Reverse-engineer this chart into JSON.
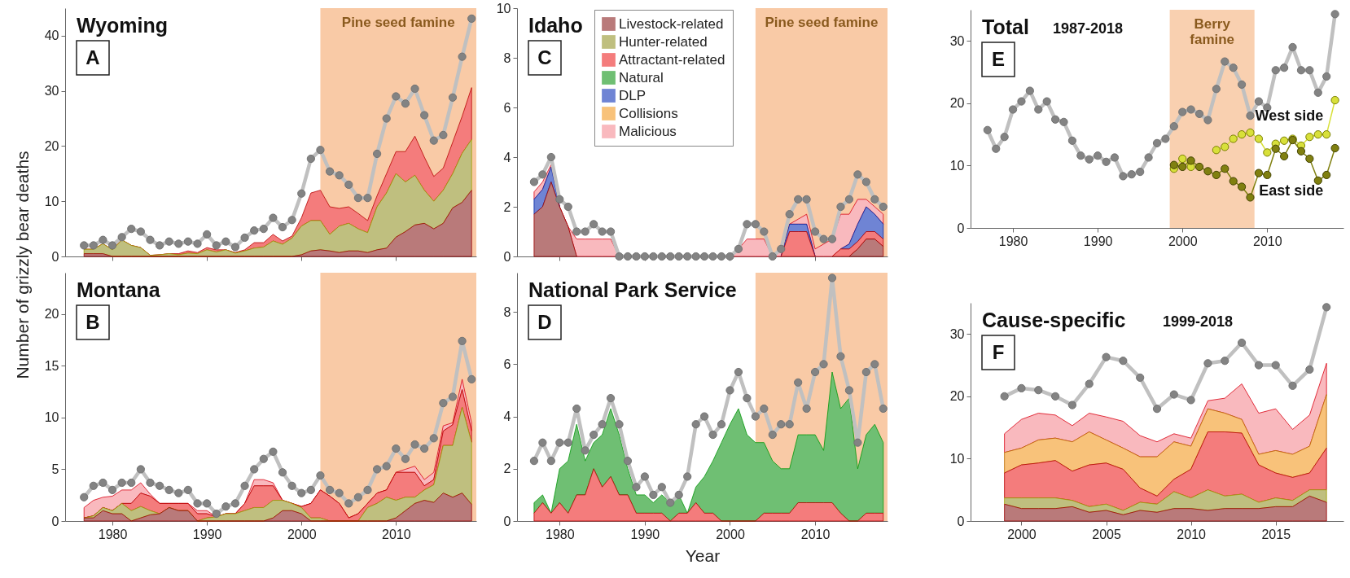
{
  "chart_data": [
    {
      "type": "area",
      "title": "Wyoming",
      "annotations": [
        "A"
      ],
      "ylabel": "Number of grizzly bear deaths",
      "x": [
        1977,
        1978,
        1979,
        1980,
        1981,
        1982,
        1983,
        1984,
        1985,
        1986,
        1987,
        1988,
        1989,
        1990,
        1991,
        1992,
        1993,
        1994,
        1995,
        1996,
        1997,
        1998,
        1999,
        2000,
        2001,
        2002,
        2003,
        2004,
        2005,
        2006,
        2007,
        2008,
        2009,
        2010,
        2011,
        2012,
        2013,
        2014,
        2015,
        2016,
        2017,
        2018
      ],
      "xlim": [
        1975,
        2018.5
      ],
      "xticks": [
        1980,
        1990,
        2000,
        2010
      ],
      "ylim": [
        0,
        45
      ],
      "yticks": [
        0,
        10,
        20,
        30,
        40
      ],
      "tick_labels": "y",
      "stacked": true,
      "bands": [
        {
          "axis": "x",
          "from": 2002,
          "to": 2018.5,
          "label": "Pine seed famine",
          "color": "#f9caa6"
        }
      ],
      "series": [
        {
          "color": "#b97a7a",
          "values": [
            0.5,
            0.5,
            0.5,
            0,
            0,
            0,
            0,
            0,
            0,
            0,
            0,
            0,
            0,
            0,
            0,
            0,
            0,
            0,
            0,
            0,
            0,
            0,
            0,
            0.3,
            1,
            1.2,
            1,
            0.7,
            1,
            1,
            0.7,
            1.2,
            1.5,
            3.5,
            4.5,
            5.7,
            6,
            5,
            6,
            8.8,
            9.8,
            12
          ]
        },
        {
          "color": "#bfbf7f",
          "values": [
            0.8,
            0.8,
            1.8,
            1.2,
            3,
            2,
            1.6,
            0.2,
            0.3,
            0.5,
            0.3,
            0.6,
            0.5,
            1.2,
            0.8,
            1.2,
            0.6,
            1,
            1.5,
            1.7,
            2.8,
            2.2,
            3.3,
            5.2,
            5.5,
            5.3,
            3,
            4.8,
            5,
            4,
            3.6,
            7.8,
            10,
            11.5,
            9,
            9,
            6,
            5,
            6,
            6.2,
            8.9,
            9.2
          ]
        },
        {
          "color": "#f47c7c",
          "values": [
            0,
            0,
            0,
            0,
            0,
            0,
            0,
            0,
            0,
            0,
            0.2,
            0.4,
            0.2,
            0.4,
            0.4,
            0,
            0.1,
            0.2,
            1,
            0.8,
            1.2,
            0.6,
            0.4,
            1.5,
            5,
            5.5,
            5,
            3.2,
            3,
            2.8,
            2.2,
            2,
            3.5,
            4,
            5.5,
            7.1,
            6,
            4.5,
            4,
            5.7,
            6.7,
            9.4
          ]
        },
        {
          "type": "line",
          "marker": "circle",
          "color": "#c0c0c0",
          "values": [
            2,
            2,
            3,
            2,
            3.5,
            5,
            4.5,
            3,
            2,
            2.7,
            2.3,
            2.7,
            2.3,
            4,
            2,
            2.7,
            1.7,
            3.4,
            4.7,
            5,
            7,
            5.3,
            6.6,
            11.4,
            17.7,
            19.3,
            15.4,
            14.7,
            13,
            10.6,
            10.6,
            18.6,
            25,
            29,
            27.7,
            30.4,
            25.6,
            21,
            22,
            28.8,
            36.2,
            43.1
          ]
        }
      ]
    },
    {
      "type": "area",
      "title": "Montana",
      "annotations": [
        "B"
      ],
      "x": [
        1977,
        1978,
        1979,
        1980,
        1981,
        1982,
        1983,
        1984,
        1985,
        1986,
        1987,
        1988,
        1989,
        1990,
        1991,
        1992,
        1993,
        1994,
        1995,
        1996,
        1997,
        1998,
        1999,
        2000,
        2001,
        2002,
        2003,
        2004,
        2005,
        2006,
        2007,
        2008,
        2009,
        2010,
        2011,
        2012,
        2013,
        2014,
        2015,
        2016,
        2017,
        2018
      ],
      "xlim": [
        1975,
        2018.5
      ],
      "xticks": [
        1980,
        1990,
        2000,
        2010
      ],
      "ylim": [
        0,
        24
      ],
      "yticks": [
        0,
        5,
        10,
        15,
        20
      ],
      "stacked": true,
      "bands": [
        {
          "axis": "x",
          "from": 2002,
          "to": 2018.5,
          "color": "#f9caa6"
        }
      ],
      "series": [
        {
          "color": "#b97a7a",
          "values": [
            0.3,
            0.3,
            1,
            0.7,
            0.7,
            0,
            0.3,
            0.6,
            0.7,
            1.3,
            1,
            1,
            0,
            0,
            0,
            0,
            0,
            0,
            0,
            0,
            0.3,
            1,
            1,
            0.7,
            0,
            0,
            0,
            0,
            0,
            0,
            0,
            0,
            0,
            0.3,
            1,
            1.7,
            2,
            1.8,
            2.7,
            2.3,
            2.7,
            1.6
          ]
        },
        {
          "color": "#bfbf7f",
          "values": [
            0,
            0.2,
            0.3,
            0.3,
            1,
            1,
            1.1,
            0.4,
            0,
            0,
            0,
            0,
            0,
            0.3,
            0.4,
            0.7,
            0.7,
            1,
            1.3,
            1.3,
            1.7,
            1,
            0.7,
            0.6,
            0.3,
            0.3,
            0,
            0,
            0,
            0,
            1.3,
            1.7,
            2.3,
            1.7,
            1.3,
            0.6,
            1,
            1.7,
            4.6,
            5,
            8.3,
            6
          ]
        },
        {
          "color": "#f47c7c",
          "values": [
            0,
            0,
            0,
            0,
            0,
            0.7,
            1.3,
            1.4,
            1,
            0.4,
            0.7,
            0.7,
            0.7,
            0.4,
            0,
            0,
            0,
            0.7,
            2.1,
            2.1,
            1.4,
            0,
            0,
            0.1,
            1.4,
            2.7,
            2.4,
            1.7,
            0.3,
            0.7,
            0.4,
            1,
            0.7,
            2.7,
            2.4,
            2.4,
            0.4,
            0.5,
            1.4,
            2,
            1.7,
            1.1
          ]
        },
        {
          "color": "#f9b9be",
          "values": [
            1,
            1.5,
            1,
            1.4,
            1.3,
            1.3,
            1,
            0.2,
            0,
            0,
            0,
            0,
            0.3,
            0.3,
            0,
            0,
            0,
            0,
            0.6,
            0.6,
            0.3,
            0,
            0,
            0,
            0,
            0,
            0,
            0,
            0,
            0,
            0,
            0,
            0,
            0,
            0.3,
            0.6,
            0.6,
            0.7,
            0.5,
            0.2,
            1,
            0.8
          ]
        },
        {
          "type": "line",
          "marker": "circle",
          "color": "#c0c0c0",
          "values": [
            2.3,
            3.4,
            3.7,
            3,
            3.7,
            3.7,
            5,
            3.7,
            3.4,
            3,
            2.7,
            3,
            1.7,
            1.7,
            0.7,
            1.4,
            1.7,
            3.4,
            5,
            6,
            6.7,
            4.7,
            3.4,
            2.7,
            3,
            4.4,
            3,
            2.7,
            1.7,
            2.3,
            3,
            5,
            5.3,
            7,
            6,
            7.4,
            7,
            8,
            11.4,
            12,
            17.4,
            13.7
          ]
        }
      ]
    },
    {
      "type": "area",
      "title": "Idaho",
      "annotations": [
        "C"
      ],
      "x": [
        1977,
        1978,
        1979,
        1980,
        1981,
        1982,
        1983,
        1984,
        1985,
        1986,
        1987,
        1988,
        1989,
        1990,
        1991,
        1992,
        1993,
        1994,
        1995,
        1996,
        1997,
        1998,
        1999,
        2000,
        2001,
        2002,
        2003,
        2004,
        2005,
        2006,
        2007,
        2008,
        2009,
        2010,
        2011,
        2012,
        2013,
        2014,
        2015,
        2016,
        2017,
        2018
      ],
      "xlim": [
        1975,
        2018.5
      ],
      "xticks": [
        1980,
        1990,
        2000,
        2010
      ],
      "ylim": [
        0,
        10
      ],
      "yticks": [
        0,
        2,
        4,
        6,
        8,
        10
      ],
      "tick_labels": "y",
      "stacked": true,
      "legend": "top left",
      "bands": [
        {
          "axis": "x",
          "from": 2003,
          "to": 2018.5,
          "label": "Pine seed famine",
          "color": "#f9caa6"
        }
      ],
      "series": [
        {
          "name": "Livestock-related",
          "color": "#b97a7a",
          "values": [
            1.7,
            2,
            3,
            2,
            1.2,
            0,
            null,
            null,
            null,
            null,
            null,
            null,
            null,
            null,
            null,
            null,
            null,
            null,
            null,
            null,
            null,
            null,
            null,
            null,
            null,
            null,
            null,
            null,
            null,
            null,
            null,
            null,
            null,
            null,
            null,
            null,
            null,
            0,
            0.3,
            0.7,
            0.7,
            0.4
          ]
        },
        {
          "name": "Hunter-related",
          "color": "#bfbf7f",
          "values": [
            null,
            null,
            null,
            null,
            null,
            null,
            null,
            null,
            null,
            null,
            null,
            null,
            null,
            null,
            null,
            null,
            null,
            null,
            null,
            null,
            null,
            null,
            null,
            null,
            null,
            null,
            null,
            null,
            null,
            null,
            null,
            null,
            null,
            null,
            null,
            null,
            null,
            null,
            null,
            null,
            null,
            null
          ]
        },
        {
          "name": "Attractant-related",
          "color": "#f47c7c",
          "values": [
            null,
            null,
            null,
            null,
            null,
            null,
            null,
            null,
            null,
            null,
            null,
            null,
            null,
            null,
            null,
            null,
            null,
            null,
            null,
            null,
            null,
            null,
            null,
            null,
            null,
            null,
            null,
            null,
            null,
            0,
            1,
            1,
            1,
            0,
            null,
            0,
            0.3,
            0.3,
            0.3,
            0.3,
            0.3,
            0.3
          ]
        },
        {
          "name": "Natural",
          "color": "#6fbf73",
          "values": [
            null,
            null,
            null,
            null,
            null,
            null,
            null,
            null,
            null,
            null,
            null,
            null,
            null,
            null,
            null,
            null,
            null,
            null,
            null,
            null,
            null,
            null,
            null,
            null,
            null,
            null,
            null,
            null,
            null,
            null,
            null,
            null,
            null,
            null,
            null,
            null,
            null,
            null,
            null,
            null,
            null,
            null
          ]
        },
        {
          "name": "DLP",
          "color": "#6f84d4",
          "values": [
            0.6,
            0.7,
            0.6,
            0,
            null,
            null,
            null,
            null,
            null,
            null,
            null,
            null,
            null,
            null,
            null,
            null,
            null,
            null,
            null,
            null,
            null,
            null,
            null,
            null,
            null,
            null,
            null,
            null,
            null,
            0,
            0.3,
            0.3,
            0.3,
            0,
            null,
            null,
            0,
            0.2,
            0.7,
            1,
            0.7,
            0.6
          ]
        },
        {
          "name": "Collisions",
          "color": "#f8c27a",
          "values": [
            null,
            null,
            null,
            null,
            null,
            null,
            null,
            null,
            null,
            null,
            null,
            null,
            null,
            null,
            null,
            null,
            null,
            null,
            null,
            null,
            null,
            null,
            null,
            null,
            null,
            null,
            null,
            null,
            null,
            null,
            null,
            null,
            null,
            null,
            null,
            null,
            null,
            null,
            null,
            null,
            null,
            null
          ]
        },
        {
          "name": "Malicious",
          "color": "#f9b9be",
          "values": [
            0.3,
            0.3,
            0.1,
            0,
            0,
            0.7,
            0.7,
            0.7,
            0.7,
            0.7,
            0,
            null,
            null,
            null,
            null,
            null,
            null,
            null,
            null,
            null,
            null,
            null,
            null,
            0,
            0.3,
            0.7,
            0.7,
            0.7,
            0,
            0.3,
            0,
            0.2,
            0.4,
            0.3,
            0.5,
            0.7,
            1.4,
            1.2,
            1,
            0.3,
            0.3,
            0.4
          ]
        },
        {
          "type": "line",
          "marker": "circle",
          "color": "#c0c0c0",
          "values": [
            3,
            3.3,
            4,
            2.3,
            2,
            1,
            1,
            1.3,
            1,
            1,
            0,
            0,
            0,
            0,
            0,
            0,
            0,
            0,
            0,
            0,
            0,
            0,
            0,
            0,
            0.3,
            1.3,
            1.3,
            1,
            0,
            0.3,
            1.7,
            2.3,
            2.3,
            1,
            0.7,
            0.7,
            2,
            2.3,
            3.3,
            3,
            2.3,
            2
          ]
        }
      ]
    },
    {
      "type": "area",
      "title": "National Park Service",
      "annotations": [
        "D"
      ],
      "xlabel": "Year",
      "x": [
        1977,
        1978,
        1979,
        1980,
        1981,
        1982,
        1983,
        1984,
        1985,
        1986,
        1987,
        1988,
        1989,
        1990,
        1991,
        1992,
        1993,
        1994,
        1995,
        1996,
        1997,
        1998,
        1999,
        2000,
        2001,
        2002,
        2003,
        2004,
        2005,
        2006,
        2007,
        2008,
        2009,
        2010,
        2011,
        2012,
        2013,
        2014,
        2015,
        2016,
        2017,
        2018
      ],
      "xlim": [
        1975,
        2018.5
      ],
      "xticks": [
        1980,
        1990,
        2000,
        2010
      ],
      "ylim": [
        0,
        9.5
      ],
      "yticks": [
        0,
        2,
        4,
        6,
        8
      ],
      "stacked": true,
      "bands": [
        {
          "axis": "x",
          "from": 2003,
          "to": 2018.5,
          "color": "#f9caa6"
        }
      ],
      "series": [
        {
          "color": "#f47c7c",
          "values": [
            0.3,
            0.7,
            0.3,
            0.7,
            0.3,
            1,
            1,
            2,
            1.3,
            1.7,
            1,
            1,
            0.3,
            0.3,
            0.3,
            0.3,
            0,
            0.3,
            0.3,
            0.7,
            0.3,
            0.3,
            0,
            0,
            0,
            0,
            0,
            0.3,
            0.3,
            0.3,
            0.3,
            0.7,
            0.7,
            0.7,
            0.7,
            0.7,
            0.3,
            0,
            0,
            0.3,
            0.3,
            0.3
          ]
        },
        {
          "color": "#6fbf73",
          "values": [
            0.4,
            0.3,
            0,
            1.3,
            2,
            2.7,
            1.3,
            1,
            2,
            2.6,
            2.3,
            1,
            0.7,
            0.7,
            0.4,
            0.7,
            0.7,
            0.7,
            0,
            0.6,
            1.4,
            2,
            3,
            3.7,
            4.3,
            3.3,
            3,
            2.7,
            2,
            1.7,
            1.7,
            2.6,
            2.6,
            2.6,
            2,
            5,
            4,
            4.7,
            2,
            3,
            3.4,
            2.7
          ]
        },
        {
          "type": "line",
          "marker": "circle",
          "color": "#c0c0c0",
          "values": [
            2.3,
            3,
            2.3,
            3,
            3,
            4.3,
            2.7,
            3.3,
            3.7,
            4.7,
            3.7,
            2.3,
            1.3,
            1.7,
            1,
            1.3,
            0.7,
            1,
            1.7,
            3.7,
            4,
            3.3,
            3.7,
            5,
            5.7,
            4.7,
            4,
            4.3,
            3.3,
            3.7,
            3.7,
            5.3,
            4.3,
            5.7,
            6,
            9.3,
            6.3,
            5,
            3,
            5.7,
            6,
            4.3
          ]
        }
      ]
    },
    {
      "type": "line",
      "title": "Total",
      "subtitle": "1987-2018",
      "annotations": [
        "E"
      ],
      "x": [
        1977,
        1978,
        1979,
        1980,
        1981,
        1982,
        1983,
        1984,
        1985,
        1986,
        1987,
        1988,
        1989,
        1990,
        1991,
        1992,
        1993,
        1994,
        1995,
        1996,
        1997,
        1998,
        1999,
        2000,
        2001,
        2002,
        2003,
        2004,
        2005,
        2006,
        2007,
        2008,
        2009,
        2010,
        2011,
        2012,
        2013,
        2014,
        2015,
        2016,
        2017,
        2018
      ],
      "xlim": [
        1975,
        2019
      ],
      "xticks": [
        1980,
        1990,
        2000,
        2010
      ],
      "ylim": [
        0,
        35
      ],
      "yticks": [
        0,
        10,
        20,
        30
      ],
      "marker": "circle",
      "bands": [
        {
          "axis": "x",
          "from": 1998.5,
          "to": 2008.5,
          "label": "Berry\nfamine",
          "color": "#f9d0b0"
        }
      ],
      "series": [
        {
          "color": "#c0c0c0",
          "values": [
            15.7,
            12.7,
            14.6,
            19,
            20.3,
            22,
            19,
            20.3,
            17.4,
            17,
            14,
            11.6,
            11,
            11.6,
            10.6,
            11.3,
            8.3,
            8.6,
            9,
            11.3,
            13.6,
            14.3,
            16.3,
            18.6,
            19,
            18.3,
            17.3,
            22.3,
            26.7,
            25.7,
            23,
            18,
            20.3,
            19.3,
            25.3,
            25.7,
            29,
            25.3,
            25.3,
            21.7,
            24.3,
            34.3
          ]
        },
        {
          "name": "West side",
          "color": "#d8e03a",
          "x": [
            1999,
            2000,
            2001,
            2002,
            2003,
            2004,
            2005,
            2006,
            2007,
            2008,
            2009,
            2010,
            2011,
            2012,
            2013,
            2014,
            2015,
            2016,
            2017,
            2018
          ],
          "values": [
            9.5,
            11.1,
            9.8,
            null,
            null,
            12.5,
            13,
            14.3,
            15,
            15.3,
            14.3,
            12.1,
            13.5,
            14,
            14.3,
            13.2,
            14.6,
            15,
            15,
            20.5
          ]
        },
        {
          "name": "East side",
          "color": "#808010",
          "x": [
            1999,
            2000,
            2001,
            2002,
            2003,
            2004,
            2005,
            2006,
            2007,
            2008,
            2009,
            2010,
            2011,
            2012,
            2013,
            2014,
            2015,
            2016,
            2017,
            2018
          ],
          "values": [
            10.1,
            9.8,
            10.8,
            9.8,
            9.1,
            8.5,
            9.5,
            7.5,
            6.6,
            4.9,
            8.8,
            8.5,
            12.7,
            11.5,
            14.1,
            12.3,
            11.1,
            7.6,
            8.5,
            12.8
          ]
        }
      ]
    },
    {
      "type": "area",
      "title": "Cause-specific",
      "subtitle": "1999-2018",
      "annotations": [
        "F"
      ],
      "x": [
        1999,
        2000,
        2001,
        2002,
        2003,
        2004,
        2005,
        2006,
        2007,
        2008,
        2009,
        2010,
        2011,
        2012,
        2013,
        2014,
        2015,
        2016,
        2017,
        2018
      ],
      "xlim": [
        1997,
        2019
      ],
      "xticks": [
        2000,
        2005,
        2010,
        2015
      ],
      "ylim": [
        0,
        35
      ],
      "yticks": [
        0,
        10,
        20,
        30
      ],
      "stacked": true,
      "series": [
        {
          "color": "#b97a7a",
          "values": [
            2.7,
            2,
            2,
            2,
            2.3,
            1.4,
            1.7,
            1,
            1.7,
            1.4,
            2,
            2,
            1.7,
            2,
            2,
            2,
            2.3,
            2.3,
            4,
            3
          ]
        },
        {
          "color": "#bfbf7f",
          "values": [
            1,
            1.7,
            1.7,
            1.7,
            1,
            0.9,
            1,
            0.7,
            1.3,
            1.3,
            2.7,
            1.7,
            3.3,
            2,
            2.3,
            1,
            1.4,
            1,
            1,
            2
          ]
        },
        {
          "color": "#f47c7c",
          "values": [
            4,
            5.3,
            5.6,
            6,
            4.7,
            6.7,
            6.6,
            6.6,
            2.3,
            1.3,
            2,
            4.6,
            9.3,
            10.3,
            9.8,
            6,
            4,
            3.7,
            2.7,
            6.7
          ]
        },
        {
          "color": "#f8c27a",
          "values": [
            3.3,
            2.7,
            3.7,
            3.6,
            4.7,
            5.3,
            3.7,
            3.4,
            5,
            6.3,
            6,
            3.7,
            3.7,
            3,
            2.2,
            1.7,
            3.6,
            3.7,
            4.3,
            8.6
          ]
        },
        {
          "color": "#f9b9be",
          "values": [
            3,
            4.6,
            4.3,
            3.7,
            2.6,
            3,
            3.7,
            4.3,
            3.4,
            2.4,
            1.3,
            1.3,
            1.3,
            2.4,
            5.7,
            6.6,
            6.7,
            4,
            5,
            5
          ]
        },
        {
          "type": "line",
          "marker": "circle",
          "color": "#c0c0c0",
          "values": [
            20,
            21.3,
            21,
            20,
            18.6,
            22,
            26.3,
            25.7,
            23,
            18,
            20.3,
            19.4,
            25.3,
            25.7,
            28.6,
            25,
            25,
            21.7,
            24.3,
            34.3
          ]
        }
      ]
    }
  ]
}
